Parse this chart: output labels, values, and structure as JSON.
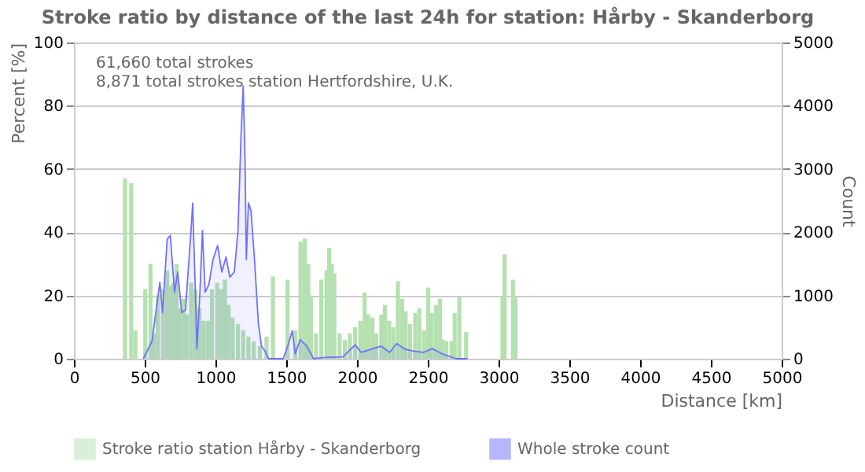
{
  "chart_data": {
    "type": "bar",
    "title": "Stroke ratio by distance of the last 24h for station: Hårby - Skanderborg",
    "xlabel": "Distance    [km]",
    "ylabel": "Percent    [%]",
    "y2label": "Count",
    "annotations": [
      "61,660 total strokes",
      "8,871 total strokes station Hertfordshire, U.K."
    ],
    "xlim": [
      0,
      5000
    ],
    "xticks": [
      0,
      500,
      1000,
      1500,
      2000,
      2500,
      3000,
      3500,
      4000,
      4500,
      5000
    ],
    "ylim": [
      0,
      100
    ],
    "yticks": [
      0,
      20,
      40,
      60,
      80,
      100
    ],
    "y2lim": [
      0,
      5000
    ],
    "y2ticks": [
      0,
      1000,
      2000,
      3000,
      4000,
      5000
    ],
    "grid": "y",
    "legend": "bottom",
    "marker": "none",
    "series": [
      {
        "name": "Stroke ratio station Hårby - Skanderborg",
        "color": "#b5e0b0",
        "x": [
          361,
          405,
          434,
          504,
          541,
          563,
          593,
          629,
          659,
          681,
          703,
          725,
          747,
          776,
          798,
          828,
          858,
          887,
          916,
          946,
          975,
          1012,
          1041,
          1067,
          1093,
          1122,
          1159,
          1196,
          1233,
          1270,
          1314,
          1361,
          1406,
          1509,
          1564,
          1601,
          1631,
          1656,
          1675,
          1711,
          1748,
          1785,
          1803,
          1822,
          1840,
          1877,
          1914,
          1950,
          1987,
          2024,
          2054,
          2079,
          2109,
          2135,
          2172,
          2197,
          2227,
          2256,
          2289,
          2318,
          2343,
          2374,
          2411,
          2440,
          2473,
          2503,
          2528,
          2558,
          2587,
          2605,
          2631,
          2668,
          2690,
          2723,
          2771,
          3028,
          3043,
          3102,
          3120
        ],
        "values": [
          57,
          55.5,
          9,
          22,
          30,
          8,
          20,
          22,
          28,
          23,
          24,
          30,
          16,
          19,
          14,
          24,
          22,
          16,
          12,
          12,
          22,
          24,
          22,
          25,
          17,
          13,
          11,
          9,
          7,
          5.5,
          4,
          7,
          26,
          25,
          9,
          37,
          38,
          30,
          20,
          8,
          25,
          28,
          35,
          30,
          27,
          8,
          6,
          8,
          10,
          12,
          21,
          14,
          13,
          8,
          14,
          17,
          12,
          10,
          24.5,
          19,
          15,
          11,
          14.5,
          16,
          9,
          22.5,
          14.5,
          17,
          19,
          6,
          5.6,
          5.6,
          14.5,
          19.6,
          8.4,
          19.6,
          33,
          25,
          19.6
        ]
      },
      {
        "name": "Whole stroke count",
        "type": "area",
        "axis": "y2",
        "color": "#7070ff",
        "x": [
          490,
          552,
          607,
          626,
          659,
          681,
          711,
          733,
          762,
          788,
          828,
          839,
          858,
          869,
          891,
          908,
          927,
          953,
          983,
          1015,
          1045,
          1075,
          1101,
          1133,
          1159,
          1181,
          1196,
          1209,
          1218,
          1233,
          1251,
          1277,
          1303,
          1325,
          1350,
          1376,
          1479,
          1516,
          1542,
          1564,
          1598,
          1645,
          1693,
          1770,
          1900,
          1987,
          2030,
          2100,
          2172,
          2230,
          2280,
          2340,
          2400,
          2470,
          2530,
          2600,
          2700,
          2780
        ],
        "values": [
          0,
          280,
          1210,
          730,
          1890,
          1950,
          1050,
          1370,
          730,
          770,
          2050,
          2460,
          1050,
          160,
          1090,
          2030,
          1050,
          1170,
          1570,
          1790,
          1370,
          1610,
          1290,
          1370,
          2010,
          3540,
          4310,
          3140,
          1570,
          2460,
          2340,
          1530,
          560,
          200,
          120,
          0,
          0,
          240,
          440,
          80,
          300,
          200,
          0,
          20,
          30,
          220,
          100,
          150,
          200,
          100,
          240,
          150,
          120,
          100,
          160,
          80,
          0,
          0
        ]
      }
    ]
  }
}
